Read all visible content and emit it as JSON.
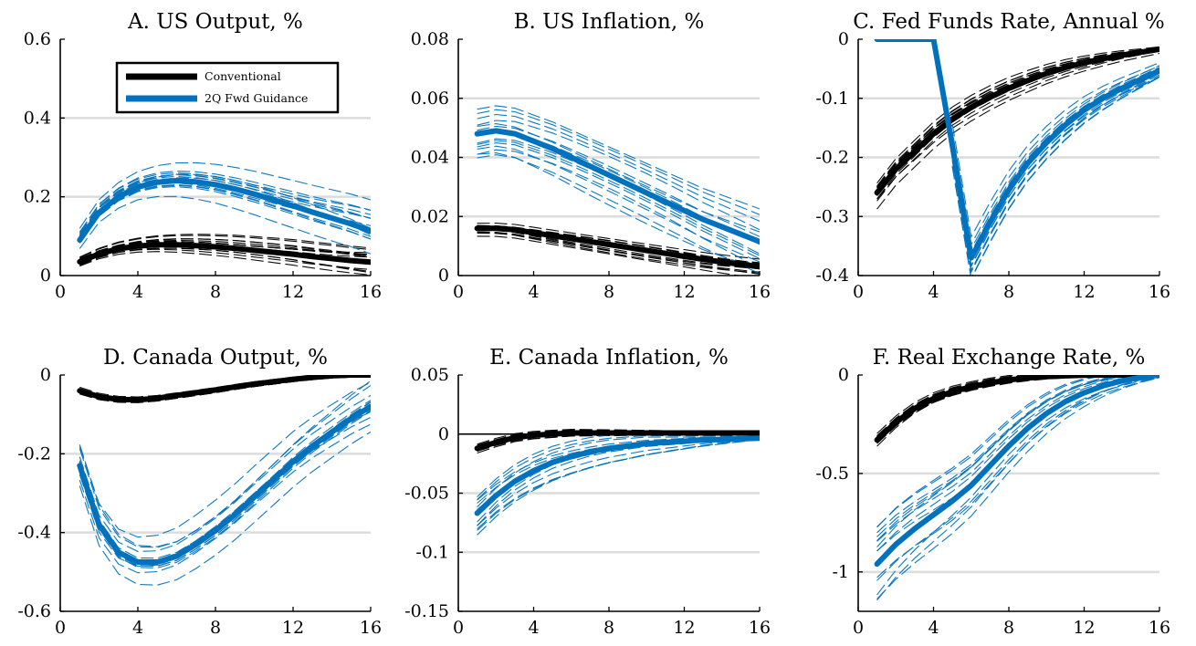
{
  "chart_data": [
    {
      "type": "line",
      "title": "A. US Output, %",
      "xlim": [
        0,
        16
      ],
      "ylim": [
        0,
        0.6
      ],
      "xticks": [
        0,
        4,
        8,
        12,
        16
      ],
      "xtick_labels": [
        "0",
        "4",
        "8",
        "12",
        "16"
      ],
      "yticks": [
        0,
        0.2,
        0.4,
        0.6
      ],
      "ytick_labels": [
        "0",
        "0.2",
        "0.4",
        "0.6"
      ],
      "grid": "horizontal",
      "x": [
        1,
        2,
        3,
        4,
        5,
        6,
        7,
        8,
        9,
        10,
        11,
        12,
        13,
        14,
        15,
        16
      ],
      "legend": {
        "placement": "top-left",
        "entries": [
          {
            "name": "Conventional",
            "color": "#000000"
          },
          {
            "name": "2Q Fwd Guidance",
            "color": "#0072BD"
          }
        ]
      },
      "series": [
        {
          "name": "Conventional",
          "color": "#000000",
          "values": [
            0.035,
            0.055,
            0.068,
            0.075,
            0.078,
            0.078,
            0.076,
            0.073,
            0.069,
            0.064,
            0.059,
            0.054,
            0.048,
            0.043,
            0.038,
            0.034
          ],
          "band": [
            0.02,
            0.06
          ]
        },
        {
          "name": "2Q Fwd Guidance",
          "color": "#0072BD",
          "values": [
            0.09,
            0.16,
            0.2,
            0.225,
            0.237,
            0.241,
            0.238,
            0.231,
            0.22,
            0.207,
            0.192,
            0.177,
            0.161,
            0.146,
            0.131,
            0.113
          ],
          "band": [
            0.045,
            0.12
          ]
        }
      ]
    },
    {
      "type": "line",
      "title": "B. US Inflation, %",
      "xlim": [
        0,
        16
      ],
      "ylim": [
        0,
        0.08
      ],
      "xticks": [
        0,
        4,
        8,
        12,
        16
      ],
      "xtick_labels": [
        "0",
        "4",
        "8",
        "12",
        "16"
      ],
      "yticks": [
        0,
        0.02,
        0.04,
        0.06,
        0.08
      ],
      "ytick_labels": [
        "0",
        "0.02",
        "0.04",
        "0.06",
        "0.08"
      ],
      "grid": "horizontal",
      "x": [
        1,
        2,
        3,
        4,
        5,
        6,
        7,
        8,
        9,
        10,
        11,
        12,
        13,
        14,
        15,
        16
      ],
      "series": [
        {
          "name": "Conventional",
          "color": "#000000",
          "values": [
            0.016,
            0.016,
            0.0155,
            0.0145,
            0.0135,
            0.0125,
            0.0115,
            0.0105,
            0.0095,
            0.0085,
            0.0075,
            0.0065,
            0.0055,
            0.0046,
            0.0038,
            0.003
          ],
          "band": [
            0.004,
            0.006
          ]
        },
        {
          "name": "2Q Fwd Guidance",
          "color": "#0072BD",
          "values": [
            0.048,
            0.049,
            0.048,
            0.0455,
            0.043,
            0.04,
            0.037,
            0.034,
            0.031,
            0.028,
            0.025,
            0.022,
            0.019,
            0.0165,
            0.014,
            0.0115
          ],
          "band": [
            0.012,
            0.016
          ]
        }
      ]
    },
    {
      "type": "line",
      "title": "C. Fed Funds Rate, Annual %",
      "xlim": [
        0,
        16
      ],
      "ylim": [
        -0.4,
        0
      ],
      "xticks": [
        0,
        4,
        8,
        12,
        16
      ],
      "xtick_labels": [
        "0",
        "4",
        "8",
        "12",
        "16"
      ],
      "yticks": [
        -0.4,
        -0.3,
        -0.2,
        -0.1,
        0
      ],
      "ytick_labels": [
        "-0.4",
        "-0.3",
        "-0.2",
        "-0.1",
        "0"
      ],
      "grid": "horizontal",
      "x": [
        1,
        2,
        3,
        4,
        5,
        6,
        7,
        8,
        9,
        10,
        11,
        12,
        13,
        14,
        15,
        16
      ],
      "series": [
        {
          "name": "Conventional",
          "color": "#000000",
          "values": [
            -0.26,
            -0.22,
            -0.19,
            -0.16,
            -0.135,
            -0.115,
            -0.098,
            -0.083,
            -0.07,
            -0.058,
            -0.048,
            -0.04,
            -0.033,
            -0.027,
            -0.022,
            -0.017
          ],
          "band": [
            0.04,
            0.01
          ]
        },
        {
          "name": "2Q Fwd Guidance",
          "color": "#0072BD",
          "values": [
            0,
            0,
            0,
            0,
            -0.18,
            -0.37,
            -0.31,
            -0.255,
            -0.21,
            -0.175,
            -0.145,
            -0.12,
            -0.1,
            -0.083,
            -0.068,
            -0.053
          ],
          "band": [
            0.06,
            0.02
          ],
          "band_start": 5
        }
      ]
    },
    {
      "type": "line",
      "title": "D. Canada Output, %",
      "xlim": [
        0,
        16
      ],
      "ylim": [
        -0.6,
        0
      ],
      "xticks": [
        0,
        4,
        8,
        12,
        16
      ],
      "xtick_labels": [
        "0",
        "4",
        "8",
        "12",
        "16"
      ],
      "yticks": [
        -0.6,
        -0.4,
        -0.2,
        0
      ],
      "ytick_labels": [
        "-0.6",
        "-0.4",
        "-0.2",
        "0"
      ],
      "grid": "horizontal",
      "x": [
        1,
        2,
        3,
        4,
        5,
        6,
        7,
        8,
        9,
        10,
        11,
        12,
        13,
        14,
        15,
        16
      ],
      "series": [
        {
          "name": "Conventional",
          "color": "#000000",
          "values": [
            -0.04,
            -0.055,
            -0.062,
            -0.063,
            -0.059,
            -0.052,
            -0.045,
            -0.038,
            -0.03,
            -0.023,
            -0.017,
            -0.011,
            -0.006,
            -0.002,
            0,
            0
          ],
          "band": [
            0.015,
            0.01
          ]
        },
        {
          "name": "2Q Fwd Guidance",
          "color": "#0072BD",
          "values": [
            -0.23,
            -0.38,
            -0.45,
            -0.475,
            -0.475,
            -0.46,
            -0.43,
            -0.395,
            -0.355,
            -0.31,
            -0.265,
            -0.22,
            -0.18,
            -0.145,
            -0.11,
            -0.08
          ],
          "band": [
            0.08,
            0.1
          ]
        }
      ]
    },
    {
      "type": "line",
      "title": "E. Canada Inflation, %",
      "xlim": [
        0,
        16
      ],
      "ylim": [
        -0.15,
        0.05
      ],
      "xticks": [
        0,
        4,
        8,
        12,
        16
      ],
      "xtick_labels": [
        "0",
        "4",
        "8",
        "12",
        "16"
      ],
      "yticks": [
        -0.15,
        -0.1,
        -0.05,
        0,
        0.05
      ],
      "ytick_labels": [
        "-0.15",
        "-0.1",
        "-0.05",
        "0",
        "0.05"
      ],
      "grid": "horizontal",
      "zero_line": true,
      "x": [
        1,
        2,
        3,
        4,
        5,
        6,
        7,
        8,
        9,
        10,
        11,
        12,
        13,
        14,
        15,
        16
      ],
      "series": [
        {
          "name": "Conventional",
          "color": "#000000",
          "values": [
            -0.012,
            -0.007,
            -0.003,
            -0.001,
            0,
            0.001,
            0.001,
            0.001,
            0.001,
            0.001,
            0.001,
            0.001,
            0.001,
            0.001,
            0.001,
            0.001
          ],
          "band": [
            0.006,
            0.001
          ]
        },
        {
          "name": "2Q Fwd Guidance",
          "color": "#0072BD",
          "values": [
            -0.067,
            -0.052,
            -0.04,
            -0.031,
            -0.024,
            -0.019,
            -0.015,
            -0.012,
            -0.01,
            -0.008,
            -0.007,
            -0.006,
            -0.005,
            -0.0045,
            -0.004,
            -0.0035
          ],
          "band": [
            0.03,
            0.002
          ]
        }
      ]
    },
    {
      "type": "line",
      "title": "F. Real Exchange Rate, %",
      "xlim": [
        0,
        16
      ],
      "ylim": [
        -1.2,
        0
      ],
      "xticks": [
        0,
        4,
        8,
        12,
        16
      ],
      "xtick_labels": [
        "0",
        "4",
        "8",
        "12",
        "16"
      ],
      "yticks": [
        -1,
        -0.5,
        0
      ],
      "ytick_labels": [
        "-1",
        "-0.5",
        "0"
      ],
      "grid": "horizontal",
      "x": [
        1,
        2,
        3,
        4,
        5,
        6,
        7,
        8,
        9,
        10,
        11,
        12,
        13,
        14,
        15,
        16
      ],
      "series": [
        {
          "name": "Conventional",
          "color": "#000000",
          "values": [
            -0.33,
            -0.24,
            -0.17,
            -0.12,
            -0.085,
            -0.06,
            -0.04,
            -0.025,
            -0.015,
            -0.008,
            -0.004,
            -0.001,
            0,
            0,
            0,
            0
          ],
          "band": [
            0.05,
            0.005
          ]
        },
        {
          "name": "2Q Fwd Guidance",
          "color": "#0072BD",
          "values": [
            -0.96,
            -0.86,
            -0.78,
            -0.71,
            -0.64,
            -0.56,
            -0.46,
            -0.36,
            -0.27,
            -0.195,
            -0.135,
            -0.09,
            -0.055,
            -0.03,
            -0.012,
            0
          ],
          "band": [
            0.28,
            0.02
          ]
        }
      ]
    }
  ]
}
